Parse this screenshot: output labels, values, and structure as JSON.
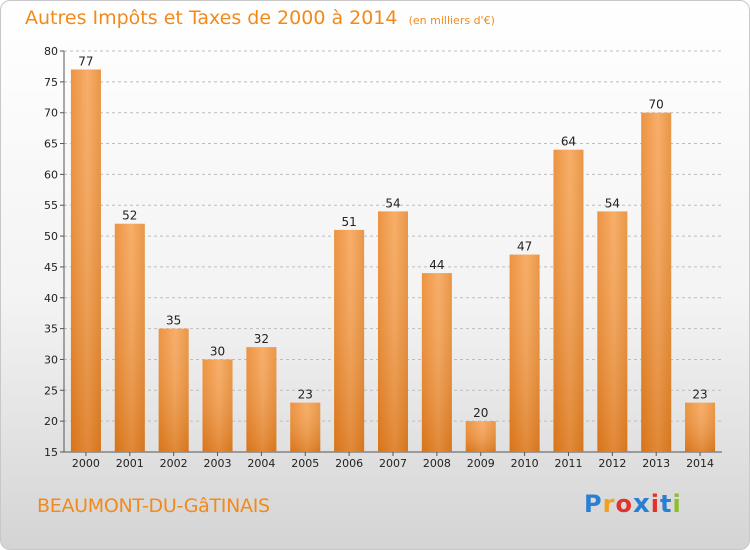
{
  "title": "Autres Impôts et Taxes de 2000 à 2014",
  "unit_note": "(en milliers d'€)",
  "commune": "BEAUMONT-DU-GâTINAIS",
  "logo": {
    "letters": [
      "P",
      "r",
      "o",
      "x",
      "i",
      "t",
      "i"
    ],
    "colors": [
      "#2a7fd4",
      "#f2a01e",
      "#e3312d",
      "#2a7fd4",
      "#e3312d",
      "#2a7fd4",
      "#8cbf26"
    ]
  },
  "chart_data": {
    "type": "bar",
    "categories": [
      "2000",
      "2001",
      "2002",
      "2003",
      "2004",
      "2005",
      "2006",
      "2007",
      "2008",
      "2009",
      "2010",
      "2011",
      "2012",
      "2013",
      "2014"
    ],
    "values": [
      77,
      52,
      35,
      30,
      32,
      23,
      51,
      54,
      44,
      20,
      47,
      64,
      54,
      70,
      23
    ],
    "ylim": [
      15,
      80
    ],
    "yticks": [
      15,
      20,
      25,
      30,
      35,
      40,
      45,
      50,
      55,
      60,
      65,
      70,
      75,
      80
    ],
    "grid": true,
    "bar_color": "#f0913a"
  }
}
